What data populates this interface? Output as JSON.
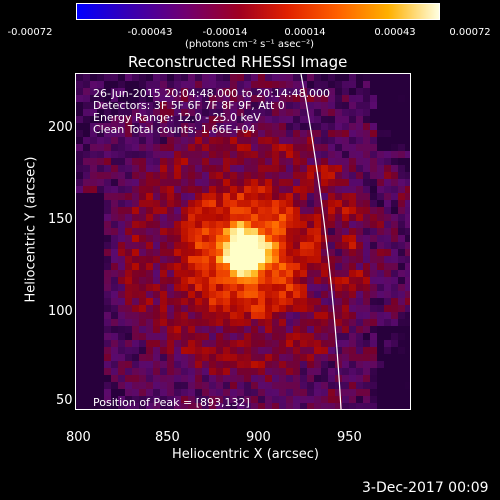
{
  "colorbar": {
    "ticks": [
      "-0.00072",
      "-0.00043",
      "-0.00014",
      "0.00014",
      "0.00043",
      "0.00072"
    ],
    "unit_label": "(photons cm⁻² s⁻¹ asec⁻²)"
  },
  "plot": {
    "title": "Reconstructed RHESSI Image",
    "ylabel": "Heliocentric Y (arcsec)",
    "xlabel": "Heliocentric X (arcsec)",
    "yticks": [
      "200",
      "150",
      "100",
      "50"
    ],
    "xticks": [
      "800",
      "850",
      "900",
      "950"
    ],
    "info_lines": [
      "26-Jun-2015 20:04:48.000 to 20:14:48.000",
      "Detectors: 3F 5F 6F 7F 8F 9F, Att 0",
      "Energy Range: 12.0 - 25.0 keV",
      "Clean    Total counts: 1.66E+04"
    ],
    "peak_label": "Position of Peak = [893,132]"
  },
  "footer": {
    "timestamp": "3-Dec-2017 00:09"
  },
  "colors": {
    "peak": "#ffffc0",
    "hot": "#ff5a00",
    "mid": "#c01000",
    "low": "#500050",
    "bg": "#000000"
  }
}
